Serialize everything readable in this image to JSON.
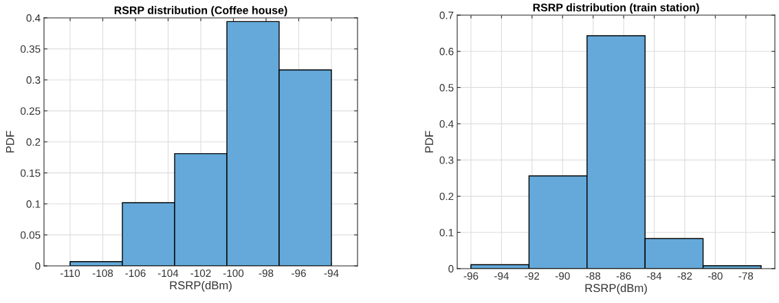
{
  "chart_data": [
    {
      "type": "histogram",
      "title": "RSRP distribution (Coffee house)",
      "xlabel": "RSRP(dBm)",
      "ylabel": "PDF",
      "bins": [
        -110,
        -106.8,
        -103.6,
        -100.4,
        -97.2,
        -94
      ],
      "values": [
        0.007,
        0.102,
        0.181,
        0.394,
        0.316
      ],
      "color": "#64a9d9",
      "xlim": [
        -111.6,
        -92.4
      ],
      "xticks": [
        -110,
        -108,
        -106,
        -104,
        -102,
        -100,
        -98,
        -96,
        -94
      ],
      "ylim": [
        0,
        0.4
      ],
      "yticks": [
        0,
        0.05,
        0.1,
        0.15,
        0.2,
        0.25,
        0.3,
        0.35,
        0.4
      ],
      "grid": true
    },
    {
      "type": "histogram",
      "title": "RSRP distribution (train station)",
      "xlabel": "RSRP(dBm)",
      "ylabel": "PDF",
      "bins": [
        -96,
        -92.2,
        -88.4,
        -84.6,
        -80.8,
        -77
      ],
      "values": [
        0.011,
        0.256,
        0.643,
        0.083,
        0.008
      ],
      "color": "#64a9d9",
      "xlim": [
        -96.9,
        -76.1
      ],
      "xticks": [
        -96,
        -94,
        -92,
        -90,
        -88,
        -86,
        -84,
        -82,
        -80,
        -78
      ],
      "ylim": [
        0,
        0.7
      ],
      "yticks": [
        0,
        0.1,
        0.2,
        0.3,
        0.4,
        0.5,
        0.6,
        0.7
      ],
      "grid": true
    }
  ]
}
